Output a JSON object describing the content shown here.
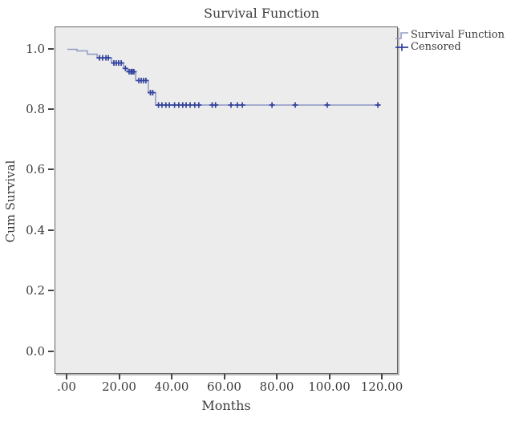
{
  "chart_data": {
    "type": "line",
    "subtype": "kaplan-meier-step-function",
    "title": "Survival Function",
    "xlabel": "Months",
    "ylabel": "Cum Survival",
    "grid": false,
    "legend_position": "top-right-outside",
    "xlim": [
      -4.58,
      126.1
    ],
    "ylim": [
      -0.075,
      1.073
    ],
    "xticks": {
      "values": [
        0,
        20,
        40,
        60,
        80,
        100,
        120
      ],
      "labels": [
        ".00",
        "20.00",
        "40.00",
        "60.00",
        "80.00",
        "100.00",
        "120.00"
      ]
    },
    "yticks": {
      "values": [
        0.0,
        0.2,
        0.4,
        0.6,
        0.8,
        1.0
      ],
      "labels": [
        "0.0",
        "0.2",
        "0.4",
        "0.6",
        "0.8",
        "1.0"
      ]
    },
    "legend": [
      {
        "label": "Survival Function",
        "marker": "step-line"
      },
      {
        "label": "Censored",
        "marker": "plus"
      }
    ],
    "series": [
      {
        "name": "Survival Function",
        "type": "step",
        "points": [
          [
            0,
            1.0
          ],
          [
            3.7,
            1.0
          ],
          [
            3.7,
            0.995
          ],
          [
            7.6,
            0.995
          ],
          [
            7.6,
            0.984
          ],
          [
            11.3,
            0.984
          ],
          [
            11.3,
            0.972
          ],
          [
            16.8,
            0.972
          ],
          [
            16.8,
            0.955
          ],
          [
            21.4,
            0.955
          ],
          [
            21.4,
            0.937
          ],
          [
            22.9,
            0.937
          ],
          [
            22.9,
            0.926
          ],
          [
            26.0,
            0.926
          ],
          [
            26.0,
            0.897
          ],
          [
            30.8,
            0.897
          ],
          [
            30.8,
            0.857
          ],
          [
            33.6,
            0.857
          ],
          [
            33.6,
            0.816
          ],
          [
            119.0,
            0.816
          ]
        ]
      },
      {
        "name": "Censored",
        "type": "scatter-plus",
        "points": [
          [
            12.2,
            0.972
          ],
          [
            13.4,
            0.972
          ],
          [
            14.7,
            0.972
          ],
          [
            15.6,
            0.972
          ],
          [
            17.7,
            0.955
          ],
          [
            18.6,
            0.955
          ],
          [
            19.5,
            0.955
          ],
          [
            20.5,
            0.955
          ],
          [
            22.1,
            0.937
          ],
          [
            23.5,
            0.926
          ],
          [
            24.2,
            0.926
          ],
          [
            24.7,
            0.926
          ],
          [
            25.3,
            0.926
          ],
          [
            27.2,
            0.897
          ],
          [
            28.1,
            0.897
          ],
          [
            29.0,
            0.897
          ],
          [
            29.9,
            0.897
          ],
          [
            31.6,
            0.857
          ],
          [
            32.5,
            0.857
          ],
          [
            34.7,
            0.816
          ],
          [
            36.0,
            0.816
          ],
          [
            37.5,
            0.816
          ],
          [
            38.8,
            0.816
          ],
          [
            40.8,
            0.816
          ],
          [
            42.4,
            0.816
          ],
          [
            43.9,
            0.816
          ],
          [
            45.2,
            0.816
          ],
          [
            46.7,
            0.816
          ],
          [
            48.5,
            0.816
          ],
          [
            50.0,
            0.816
          ],
          [
            55.1,
            0.816
          ],
          [
            56.4,
            0.816
          ],
          [
            62.3,
            0.816
          ],
          [
            64.7,
            0.816
          ],
          [
            66.6,
            0.816
          ],
          [
            77.9,
            0.816
          ],
          [
            86.7,
            0.816
          ],
          [
            98.9,
            0.816
          ],
          [
            118.2,
            0.816
          ]
        ]
      }
    ],
    "colors": {
      "line": "#939dc7",
      "censor": "#31409b",
      "plot_background": "#ececec",
      "frame": "#646464",
      "tick": "#454545",
      "text": "#3d3d3d",
      "page_background": "#ffffff"
    }
  }
}
